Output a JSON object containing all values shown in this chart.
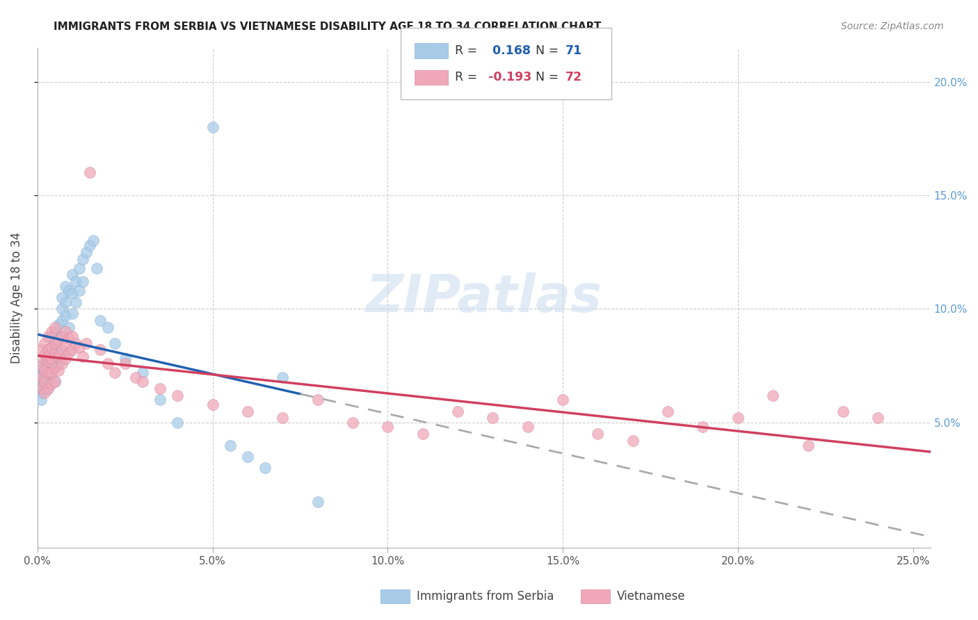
{
  "title": "IMMIGRANTS FROM SERBIA VS VIETNAMESE DISABILITY AGE 18 TO 34 CORRELATION CHART",
  "source": "Source: ZipAtlas.com",
  "ylabel": "Disability Age 18 to 34",
  "xlim": [
    0.0,
    0.255
  ],
  "ylim": [
    -0.005,
    0.215
  ],
  "xticks": [
    0.0,
    0.05,
    0.1,
    0.15,
    0.2,
    0.25
  ],
  "xticklabels": [
    "0.0%",
    "5.0%",
    "10.0%",
    "15.0%",
    "20.0%",
    "25.0%"
  ],
  "right_yticks": [
    0.05,
    0.1,
    0.15,
    0.2
  ],
  "right_yticklabels": [
    "5.0%",
    "10.0%",
    "15.0%",
    "20.0%"
  ],
  "serbia_R": 0.168,
  "serbia_N": 71,
  "vietnamese_R": -0.193,
  "vietnamese_N": 72,
  "serbia_color": "#A8CCE8",
  "vietnamese_color": "#F0A8B8",
  "serbia_line_color": "#2060B0",
  "vietnamese_line_color": "#D04060",
  "dash_color": "#AAAAAA",
  "watermark_color": "#C8DCF0",
  "serbia_x": [
    0.001,
    0.001,
    0.001,
    0.001,
    0.001,
    0.001,
    0.001,
    0.002,
    0.002,
    0.002,
    0.002,
    0.002,
    0.002,
    0.002,
    0.002,
    0.003,
    0.003,
    0.003,
    0.003,
    0.003,
    0.003,
    0.004,
    0.004,
    0.004,
    0.004,
    0.004,
    0.005,
    0.005,
    0.005,
    0.005,
    0.005,
    0.005,
    0.006,
    0.006,
    0.006,
    0.006,
    0.007,
    0.007,
    0.007,
    0.007,
    0.008,
    0.008,
    0.008,
    0.009,
    0.009,
    0.01,
    0.01,
    0.01,
    0.011,
    0.011,
    0.012,
    0.012,
    0.013,
    0.013,
    0.014,
    0.015,
    0.016,
    0.017,
    0.018,
    0.02,
    0.022,
    0.025,
    0.03,
    0.035,
    0.04,
    0.05,
    0.055,
    0.06,
    0.065,
    0.07,
    0.08
  ],
  "serbia_y": [
    0.07,
    0.072,
    0.068,
    0.065,
    0.075,
    0.063,
    0.06,
    0.071,
    0.073,
    0.069,
    0.075,
    0.067,
    0.074,
    0.072,
    0.064,
    0.075,
    0.078,
    0.071,
    0.068,
    0.082,
    0.065,
    0.08,
    0.083,
    0.076,
    0.072,
    0.088,
    0.078,
    0.082,
    0.09,
    0.085,
    0.074,
    0.068,
    0.087,
    0.08,
    0.093,
    0.076,
    0.1,
    0.095,
    0.088,
    0.105,
    0.11,
    0.103,
    0.097,
    0.108,
    0.092,
    0.115,
    0.107,
    0.098,
    0.112,
    0.103,
    0.118,
    0.108,
    0.122,
    0.112,
    0.125,
    0.128,
    0.13,
    0.118,
    0.095,
    0.092,
    0.085,
    0.078,
    0.072,
    0.06,
    0.05,
    0.18,
    0.04,
    0.035,
    0.03,
    0.07,
    0.015
  ],
  "vietnamese_x": [
    0.001,
    0.001,
    0.001,
    0.001,
    0.002,
    0.002,
    0.002,
    0.002,
    0.002,
    0.002,
    0.003,
    0.003,
    0.003,
    0.003,
    0.003,
    0.003,
    0.004,
    0.004,
    0.004,
    0.004,
    0.004,
    0.005,
    0.005,
    0.005,
    0.005,
    0.005,
    0.006,
    0.006,
    0.006,
    0.007,
    0.007,
    0.007,
    0.008,
    0.008,
    0.008,
    0.009,
    0.009,
    0.01,
    0.01,
    0.011,
    0.012,
    0.013,
    0.014,
    0.015,
    0.018,
    0.02,
    0.022,
    0.025,
    0.028,
    0.03,
    0.035,
    0.04,
    0.05,
    0.06,
    0.07,
    0.08,
    0.09,
    0.1,
    0.11,
    0.12,
    0.13,
    0.14,
    0.15,
    0.16,
    0.17,
    0.18,
    0.19,
    0.2,
    0.21,
    0.22,
    0.23,
    0.24
  ],
  "vietnamese_y": [
    0.075,
    0.07,
    0.082,
    0.065,
    0.078,
    0.073,
    0.08,
    0.068,
    0.085,
    0.063,
    0.082,
    0.077,
    0.072,
    0.088,
    0.065,
    0.079,
    0.083,
    0.078,
    0.072,
    0.09,
    0.067,
    0.085,
    0.08,
    0.074,
    0.092,
    0.068,
    0.086,
    0.079,
    0.073,
    0.088,
    0.082,
    0.076,
    0.09,
    0.084,
    0.078,
    0.087,
    0.081,
    0.088,
    0.082,
    0.085,
    0.083,
    0.079,
    0.085,
    0.16,
    0.082,
    0.076,
    0.072,
    0.076,
    0.07,
    0.068,
    0.065,
    0.062,
    0.058,
    0.055,
    0.052,
    0.06,
    0.05,
    0.048,
    0.045,
    0.055,
    0.052,
    0.048,
    0.06,
    0.045,
    0.042,
    0.055,
    0.048,
    0.052,
    0.062,
    0.04,
    0.055,
    0.052
  ]
}
